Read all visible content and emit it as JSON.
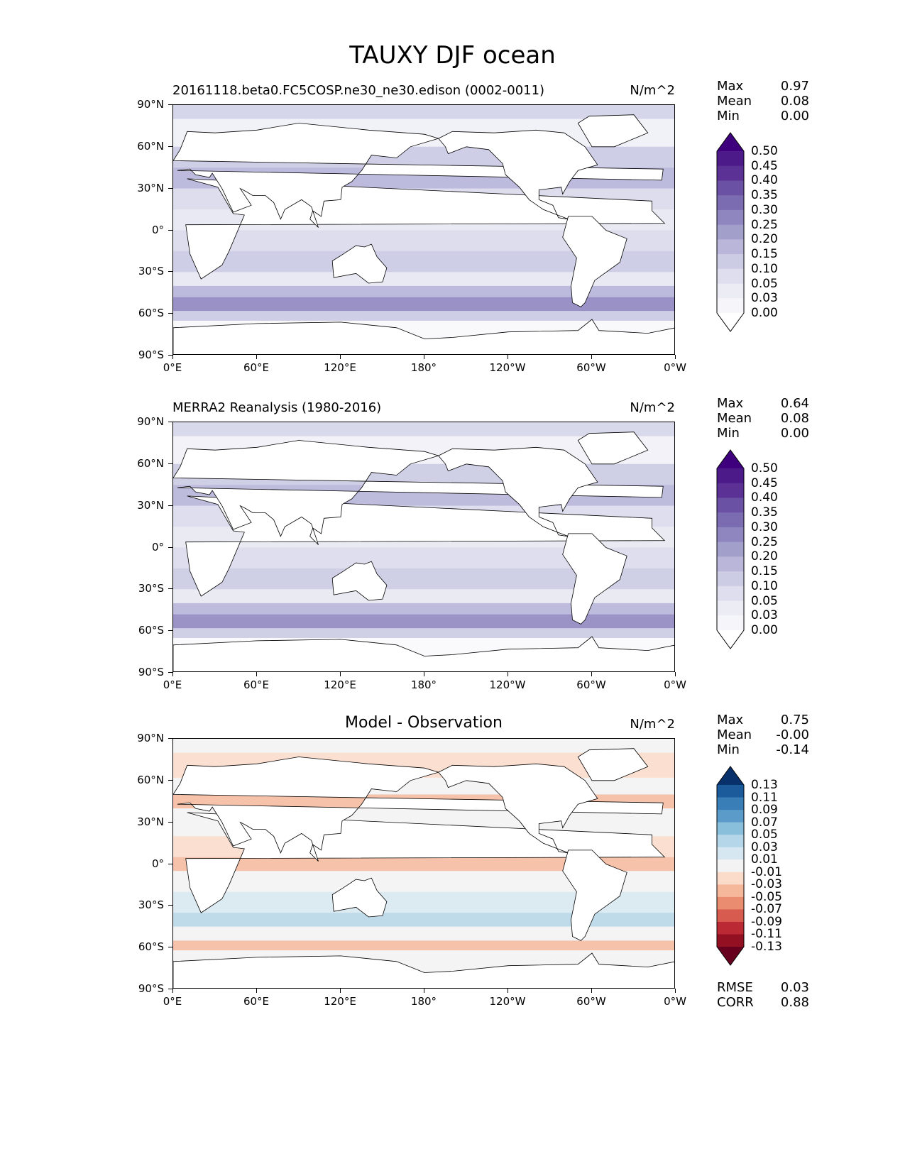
{
  "title": "TAUXY DJF ocean",
  "panels": [
    {
      "title_left": "20161118.beta0.FC5COSP.ne30_ne30.edison (0002-0011)",
      "title_center": "",
      "units": "N/m^2",
      "stats": {
        "max_label": "Max",
        "max": "0.97",
        "mean_label": "Mean",
        "mean": "0.08",
        "min_label": "Min",
        "min": "0.00"
      },
      "colorbar_levels": [
        "0.50",
        "0.45",
        "0.40",
        "0.35",
        "0.30",
        "0.25",
        "0.20",
        "0.15",
        "0.10",
        "0.05",
        "0.03",
        "0.00"
      ],
      "colorbar_colors": [
        "#3f007d",
        "#4d1a8a",
        "#5b3196",
        "#6a51a3",
        "#7b6cb1",
        "#8f86bf",
        "#a39fcb",
        "#b9b6da",
        "#cdcce5",
        "#dedeee",
        "#ececf5",
        "#f6f6fa",
        "#ffffff"
      ],
      "map_fill": "#d6d6ea"
    },
    {
      "title_left": "MERRA2 Reanalysis (1980-2016)",
      "title_center": "",
      "units": "N/m^2",
      "stats": {
        "max_label": "Max",
        "max": "0.64",
        "mean_label": "Mean",
        "mean": "0.08",
        "min_label": "Min",
        "min": "0.00"
      },
      "colorbar_levels": [
        "0.50",
        "0.45",
        "0.40",
        "0.35",
        "0.30",
        "0.25",
        "0.20",
        "0.15",
        "0.10",
        "0.05",
        "0.03",
        "0.00"
      ],
      "colorbar_colors": [
        "#3f007d",
        "#4d1a8a",
        "#5b3196",
        "#6a51a3",
        "#7b6cb1",
        "#8f86bf",
        "#a39fcb",
        "#b9b6da",
        "#cdcce5",
        "#dedeee",
        "#ececf5",
        "#f6f6fa",
        "#ffffff"
      ],
      "map_fill": "#d9d9ec"
    },
    {
      "title_left": "",
      "title_center": "Model - Observation",
      "units": "N/m^2",
      "stats": {
        "max_label": "Max",
        "max": "0.75",
        "mean_label": "Mean",
        "mean": "-0.00",
        "min_label": "Min",
        "min": "-0.14"
      },
      "colorbar_levels": [
        "0.13",
        "0.11",
        "0.09",
        "0.07",
        "0.05",
        "0.03",
        "0.01",
        "-0.01",
        "-0.03",
        "-0.05",
        "-0.07",
        "-0.09",
        "-0.11",
        "-0.13"
      ],
      "colorbar_colors": [
        "#08306b",
        "#1b5a9b",
        "#3a7eb8",
        "#5a9bc9",
        "#8abfdc",
        "#b5d6e8",
        "#d7e7f1",
        "#f3f3f3",
        "#fbdccb",
        "#f6b89b",
        "#ea8c70",
        "#d85b4f",
        "#bb2a34",
        "#931022",
        "#67001f"
      ],
      "map_fill": "#f4f4f4",
      "extra_stats": {
        "rmse_label": "RMSE",
        "rmse": "0.03",
        "corr_label": "CORR",
        "corr": "0.88"
      }
    }
  ],
  "lat_ticks": [
    "90°N",
    "60°N",
    "30°N",
    "0°",
    "30°S",
    "60°S",
    "90°S"
  ],
  "lon_ticks": [
    "0°E",
    "60°E",
    "120°E",
    "180°",
    "120°W",
    "60°W",
    "0°W"
  ]
}
